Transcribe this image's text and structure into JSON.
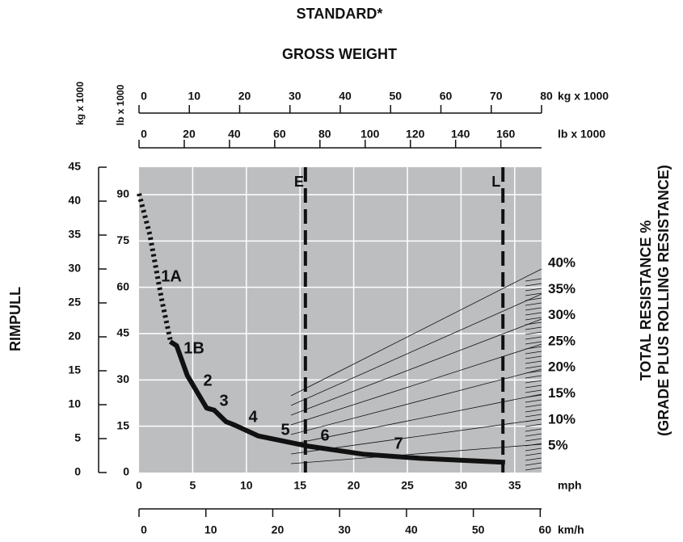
{
  "chart_data": {
    "type": "line",
    "title": "STANDARD*",
    "subtitle": "GROSS WEIGHT",
    "y_label": "RIMPULL",
    "y2_label": [
      "TOTAL RESISTANCE %",
      "(GRADE PLUS ROLLING RESISTANCE)"
    ],
    "x_label": "mph",
    "xlim": [
      0,
      37.5
    ],
    "xticks": [
      0,
      5,
      10,
      15,
      20,
      25,
      30,
      35
    ],
    "x2_label": "km/h",
    "x2lim": [
      0,
      60.2
    ],
    "x2ticks": [
      0,
      10,
      20,
      30,
      40,
      50,
      60
    ],
    "top_kg_label": "kg x 1000",
    "top_kg_lim": [
      0,
      80
    ],
    "top_kg_ticks": [
      0,
      10,
      20,
      30,
      40,
      50,
      60,
      70,
      80
    ],
    "top_lb_label": "lb x 1000",
    "top_lb_lim": [
      0,
      178
    ],
    "top_lb_ticks": [
      0,
      20,
      40,
      60,
      80,
      100,
      120,
      140,
      160
    ],
    "ylim_label": "kg x 1000",
    "ylim": [
      0,
      45
    ],
    "yticks": [
      0,
      5,
      10,
      15,
      20,
      25,
      30,
      35,
      40,
      45
    ],
    "ylb_label": "lb x 1000",
    "ylb_lim": [
      0,
      98.9
    ],
    "ylb_ticks": [
      0,
      15,
      30,
      45,
      60,
      75,
      90
    ],
    "grid": true,
    "series": [
      {
        "name": "1A",
        "color": "#111111",
        "style": "dotted",
        "x": [
          0,
          1.0,
          2.1,
          2.9
        ],
        "values": [
          41.1,
          35.1,
          25.6,
          19.6
        ]
      },
      {
        "name": "1B",
        "color": "#111111",
        "style": "solid",
        "x": [
          2.9,
          3.5,
          4.5,
          6.3,
          7.0,
          8.1,
          8.9,
          11.1,
          15.7,
          20.9,
          26.2,
          34.1
        ],
        "values": [
          19.3,
          18.7,
          14.3,
          9.5,
          9.2,
          7.5,
          7.0,
          5.4,
          3.9,
          2.7,
          2.1,
          1.5
        ]
      }
    ],
    "gear_labels": [
      "2",
      "3",
      "4",
      "5",
      "6",
      "7"
    ],
    "markers": [
      {
        "label": "E",
        "x": 15.5
      },
      {
        "label": "L",
        "x": 33.9
      }
    ],
    "resistance": {
      "labels": [
        "40%",
        "35%",
        "30%",
        "25%",
        "20%",
        "15%",
        "10%",
        "5%"
      ],
      "values": [
        40,
        35,
        30,
        25,
        20,
        15,
        10,
        5
      ]
    }
  }
}
